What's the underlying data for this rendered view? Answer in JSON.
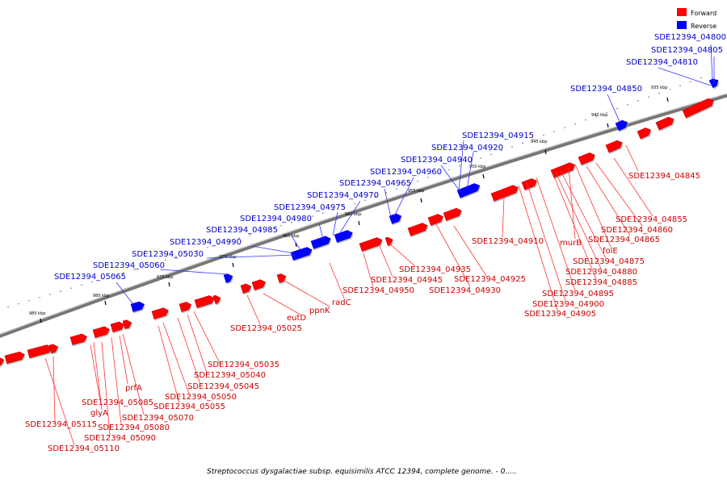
{
  "legend": {
    "forward_label": "Forward",
    "reverse_label": "Reverse",
    "forward_color": "#ff0000",
    "reverse_color": "#0000ff"
  },
  "caption": "Streptococcus dysgalactiae subsp. equisimilis ATCC 12394, complete genome. - 0.....",
  "scale_ticks": [
    "935 kbp",
    "940 kbp",
    "945 kbp",
    "950 kbp",
    "955 kbp",
    "960 kbp",
    "965 kbp",
    "970 kbp",
    "975 kbp",
    "980 kbp",
    "985 kbp"
  ],
  "genes": [
    {
      "label": "SDE12394_04800",
      "strand": "reverse"
    },
    {
      "label": "SDE12394_04805",
      "strand": "reverse"
    },
    {
      "label": "SDE12394_04810",
      "strand": "reverse"
    },
    {
      "label": "SDE12394_04850",
      "strand": "reverse"
    },
    {
      "label": "SDE12394_04915",
      "strand": "reverse"
    },
    {
      "label": "SDE12394_04920",
      "strand": "reverse"
    },
    {
      "label": "SDE12394_04940",
      "strand": "reverse"
    },
    {
      "label": "SDE12394_04960",
      "strand": "reverse"
    },
    {
      "label": "SDE12394_04965",
      "strand": "reverse"
    },
    {
      "label": "SDE12394_04970",
      "strand": "reverse"
    },
    {
      "label": "SDE12394_04975",
      "strand": "reverse"
    },
    {
      "label": "SDE12394_04980",
      "strand": "reverse"
    },
    {
      "label": "SDE12394_04985",
      "strand": "reverse"
    },
    {
      "label": "SDE12394_04990",
      "strand": "reverse"
    },
    {
      "label": "SDE12394_05030",
      "strand": "reverse"
    },
    {
      "label": "SDE12394_05060",
      "strand": "reverse"
    },
    {
      "label": "SDE12394_05065",
      "strand": "reverse"
    },
    {
      "label": "SDE12394_04845",
      "strand": "forward"
    },
    {
      "label": "SDE12394_04855",
      "strand": "forward"
    },
    {
      "label": "SDE12394_04860",
      "strand": "forward"
    },
    {
      "label": "SDE12394_04865",
      "strand": "forward"
    },
    {
      "label": "murB",
      "strand": "forward"
    },
    {
      "label": "folE",
      "strand": "forward"
    },
    {
      "label": "SDE12394_04875",
      "strand": "forward"
    },
    {
      "label": "SDE12394_04880",
      "strand": "forward"
    },
    {
      "label": "SDE12394_04885",
      "strand": "forward"
    },
    {
      "label": "SDE12394_04895",
      "strand": "forward"
    },
    {
      "label": "SDE12394_04900",
      "strand": "forward"
    },
    {
      "label": "SDE12394_04905",
      "strand": "forward"
    },
    {
      "label": "SDE12394_04910",
      "strand": "forward"
    },
    {
      "label": "SDE12394_04925",
      "strand": "forward"
    },
    {
      "label": "SDE12394_04930",
      "strand": "forward"
    },
    {
      "label": "SDE12394_04935",
      "strand": "forward"
    },
    {
      "label": "SDE12394_04945",
      "strand": "forward"
    },
    {
      "label": "SDE12394_04950",
      "strand": "forward"
    },
    {
      "label": "radC",
      "strand": "forward"
    },
    {
      "label": "ppnK",
      "strand": "forward"
    },
    {
      "label": "eutD",
      "strand": "forward"
    },
    {
      "label": "SDE12394_05025",
      "strand": "forward"
    },
    {
      "label": "SDE12394_05035",
      "strand": "forward"
    },
    {
      "label": "SDE12394_05040",
      "strand": "forward"
    },
    {
      "label": "SDE12394_05045",
      "strand": "forward"
    },
    {
      "label": "SDE12394_05050",
      "strand": "forward"
    },
    {
      "label": "SDE12394_05055",
      "strand": "forward"
    },
    {
      "label": "SDE12394_05070",
      "strand": "forward"
    },
    {
      "label": "SDE12394_05080",
      "strand": "forward"
    },
    {
      "label": "SDE12394_05090",
      "strand": "forward"
    },
    {
      "label": "SDE12394_05085",
      "strand": "forward"
    },
    {
      "label": "prfA",
      "strand": "forward"
    },
    {
      "label": "glyA",
      "strand": "forward"
    },
    {
      "label": "SDE12394_05115",
      "strand": "forward"
    },
    {
      "label": "SDE12394_05110",
      "strand": "forward"
    }
  ]
}
